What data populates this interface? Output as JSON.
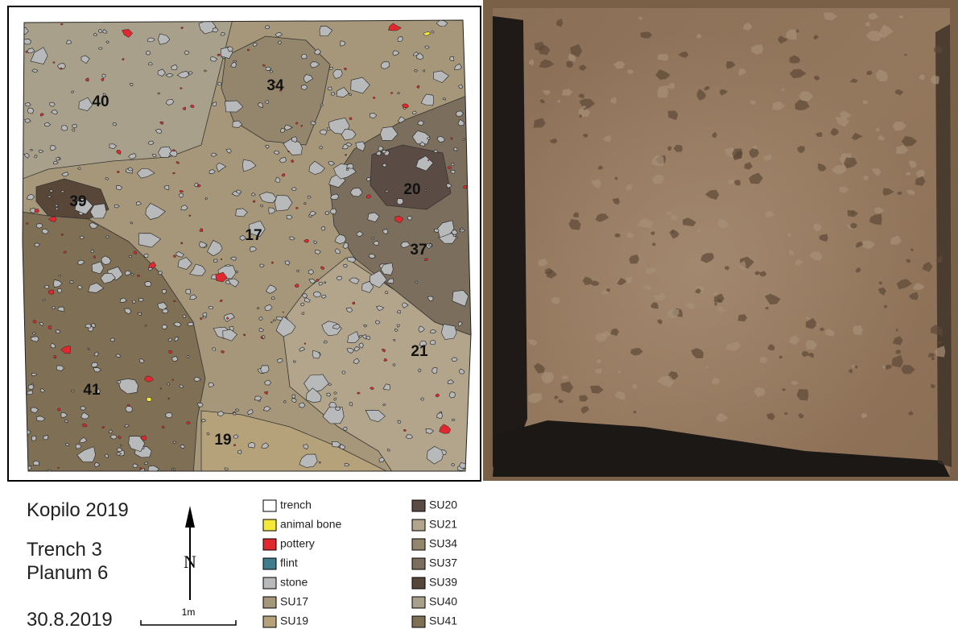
{
  "map": {
    "zones": [
      {
        "label": "17",
        "color": "#a6977a"
      },
      {
        "label": "40",
        "color": "#a8a08a"
      },
      {
        "label": "34",
        "color": "#94866d"
      },
      {
        "label": "37",
        "color": "#7c6e5c"
      },
      {
        "label": "20",
        "color": "#5a4c45"
      },
      {
        "label": "21",
        "color": "#b3a58b"
      },
      {
        "label": "39",
        "color": "#584739"
      },
      {
        "label": "41",
        "color": "#7f6f55"
      },
      {
        "label": "19",
        "color": "#b5a27a"
      }
    ]
  },
  "info": {
    "site": "Kopilo 2019",
    "trench": "Trench 3",
    "planum": "Planum 6",
    "date": "30.8.2019"
  },
  "north": "N",
  "scale": "1m",
  "legend": [
    {
      "label": "trench",
      "color": "#ffffff"
    },
    {
      "label": "animal bone",
      "color": "#f4e83a"
    },
    {
      "label": "pottery",
      "color": "#e1282e"
    },
    {
      "label": "flint",
      "color": "#3f7c8c"
    },
    {
      "label": "stone",
      "color": "#b8b9bb"
    },
    {
      "label": "SU17",
      "color": "#a6977a"
    },
    {
      "label": "SU19",
      "color": "#b5a27a"
    },
    {
      "label": "SU20",
      "color": "#5a4c45"
    },
    {
      "label": "SU21",
      "color": "#b3a58b"
    },
    {
      "label": "SU34",
      "color": "#94866d"
    },
    {
      "label": "SU37",
      "color": "#7c6e5c"
    },
    {
      "label": "SU39",
      "color": "#584739"
    },
    {
      "label": "SU40",
      "color": "#a8a08a"
    },
    {
      "label": "SU41",
      "color": "#7f6f55"
    }
  ]
}
